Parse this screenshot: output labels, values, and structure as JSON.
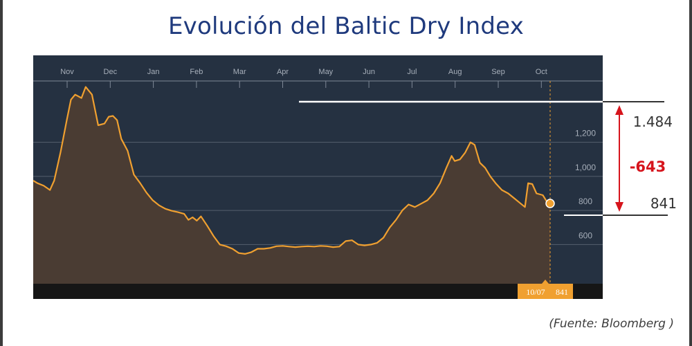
{
  "title": "Evolución del Baltic Dry Index",
  "source": "(Fuente: Bloomberg )",
  "colors": {
    "title": "#1f3a7d",
    "plot_bg": "#253141",
    "line": "#f0a030",
    "area": "#4a3c33",
    "bottom_bar": "#161616",
    "marker": "#f0a030",
    "change": "#d6141c",
    "annot_text": "#333333"
  },
  "chart_data": {
    "type": "area",
    "x_ticks": [
      "Nov",
      "Dec",
      "Jan",
      "Feb",
      "Mar",
      "Apr",
      "May",
      "Jun",
      "Jul",
      "Aug",
      "Sep",
      "Oct"
    ],
    "y_ticks": [
      "1,200",
      "1,000",
      "800",
      "600"
    ],
    "y_tick_values": [
      1200,
      1000,
      800,
      600
    ],
    "ylim": [
      370,
      1560
    ],
    "grid": true,
    "current_label": {
      "date": "10/07",
      "value": "841"
    },
    "annotations": {
      "high": "1.484",
      "change": "-643",
      "low": "841"
    },
    "series": [
      {
        "values": [
          [
            0,
            975
          ],
          [
            0.2,
            960
          ],
          [
            0.5,
            945
          ],
          [
            0.8,
            920
          ],
          [
            1.0,
            975
          ],
          [
            1.3,
            1140
          ],
          [
            1.6,
            1330
          ],
          [
            1.8,
            1450
          ],
          [
            2.0,
            1480
          ],
          [
            2.3,
            1460
          ],
          [
            2.5,
            1525
          ],
          [
            2.8,
            1480
          ],
          [
            3.1,
            1300
          ],
          [
            3.4,
            1310
          ],
          [
            3.6,
            1350
          ],
          [
            3.8,
            1355
          ],
          [
            4.0,
            1330
          ],
          [
            4.2,
            1220
          ],
          [
            4.5,
            1150
          ],
          [
            4.8,
            1010
          ],
          [
            5.1,
            960
          ],
          [
            5.4,
            905
          ],
          [
            5.7,
            860
          ],
          [
            6.0,
            830
          ],
          [
            6.3,
            810
          ],
          [
            6.6,
            798
          ],
          [
            6.9,
            790
          ],
          [
            7.2,
            780
          ],
          [
            7.4,
            745
          ],
          [
            7.6,
            760
          ],
          [
            7.8,
            740
          ],
          [
            8.0,
            765
          ],
          [
            8.3,
            710
          ],
          [
            8.6,
            650
          ],
          [
            8.9,
            600
          ],
          [
            9.2,
            590
          ],
          [
            9.5,
            575
          ],
          [
            9.8,
            550
          ],
          [
            10.1,
            545
          ],
          [
            10.4,
            555
          ],
          [
            10.7,
            575
          ],
          [
            11.0,
            575
          ],
          [
            11.3,
            580
          ],
          [
            11.6,
            590
          ],
          [
            11.9,
            592
          ],
          [
            12.2,
            588
          ],
          [
            12.5,
            585
          ],
          [
            12.8,
            588
          ],
          [
            13.1,
            590
          ],
          [
            13.4,
            588
          ],
          [
            13.7,
            592
          ],
          [
            14.0,
            590
          ],
          [
            14.3,
            585
          ],
          [
            14.6,
            588
          ],
          [
            14.9,
            620
          ],
          [
            15.2,
            625
          ],
          [
            15.5,
            600
          ],
          [
            15.8,
            595
          ],
          [
            16.1,
            600
          ],
          [
            16.4,
            610
          ],
          [
            16.7,
            640
          ],
          [
            17.0,
            700
          ],
          [
            17.3,
            745
          ],
          [
            17.6,
            800
          ],
          [
            17.9,
            835
          ],
          [
            18.2,
            820
          ],
          [
            18.5,
            840
          ],
          [
            18.8,
            860
          ],
          [
            19.1,
            900
          ],
          [
            19.4,
            960
          ],
          [
            19.7,
            1050
          ],
          [
            19.95,
            1120
          ],
          [
            20.1,
            1090
          ],
          [
            20.35,
            1100
          ],
          [
            20.6,
            1140
          ],
          [
            20.85,
            1200
          ],
          [
            21.05,
            1185
          ],
          [
            21.3,
            1080
          ],
          [
            21.55,
            1050
          ],
          [
            21.8,
            1000
          ],
          [
            22.05,
            960
          ],
          [
            22.35,
            920
          ],
          [
            22.65,
            900
          ],
          [
            22.95,
            870
          ],
          [
            23.25,
            840
          ],
          [
            23.45,
            820
          ],
          [
            23.6,
            960
          ],
          [
            23.8,
            955
          ],
          [
            24.0,
            900
          ],
          [
            24.3,
            890
          ],
          [
            24.5,
            850
          ],
          [
            24.65,
            841
          ]
        ]
      }
    ]
  }
}
